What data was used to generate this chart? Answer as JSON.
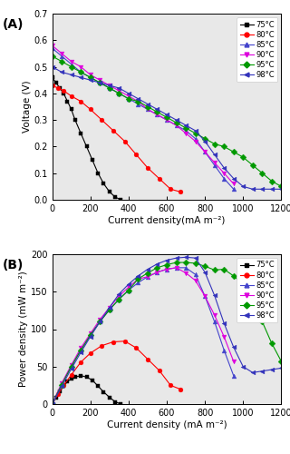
{
  "series_A": {
    "75C": {
      "marker": "s",
      "cd": [
        0,
        20,
        40,
        60,
        80,
        100,
        120,
        150,
        180,
        210,
        240,
        270,
        300,
        330,
        360
      ],
      "v": [
        0.46,
        0.44,
        0.42,
        0.4,
        0.37,
        0.34,
        0.3,
        0.25,
        0.2,
        0.15,
        0.1,
        0.06,
        0.03,
        0.01,
        0.0
      ]
    },
    "80C": {
      "marker": "o",
      "cd": [
        0,
        30,
        60,
        100,
        150,
        200,
        260,
        320,
        380,
        440,
        500,
        560,
        620,
        670
      ],
      "v": [
        0.43,
        0.42,
        0.41,
        0.39,
        0.37,
        0.34,
        0.3,
        0.26,
        0.22,
        0.17,
        0.12,
        0.08,
        0.04,
        0.03
      ]
    },
    "85C": {
      "marker": "^",
      "cd": [
        0,
        50,
        100,
        150,
        200,
        250,
        300,
        350,
        400,
        450,
        500,
        550,
        600,
        650,
        700,
        750,
        800,
        850,
        900,
        950
      ],
      "v": [
        0.57,
        0.54,
        0.51,
        0.48,
        0.46,
        0.44,
        0.42,
        0.4,
        0.38,
        0.36,
        0.34,
        0.32,
        0.3,
        0.28,
        0.26,
        0.23,
        0.18,
        0.13,
        0.08,
        0.04
      ]
    },
    "90C": {
      "marker": "v",
      "cd": [
        0,
        50,
        100,
        150,
        200,
        250,
        300,
        350,
        400,
        450,
        500,
        550,
        600,
        650,
        700,
        750,
        800,
        850,
        900,
        950
      ],
      "v": [
        0.58,
        0.55,
        0.52,
        0.5,
        0.47,
        0.45,
        0.43,
        0.41,
        0.39,
        0.37,
        0.34,
        0.32,
        0.3,
        0.28,
        0.25,
        0.22,
        0.18,
        0.14,
        0.1,
        0.06
      ]
    },
    "95C": {
      "marker": "D",
      "cd": [
        0,
        50,
        100,
        150,
        200,
        250,
        300,
        350,
        400,
        450,
        500,
        550,
        600,
        650,
        700,
        750,
        800,
        850,
        900,
        950,
        1000,
        1050,
        1100,
        1150,
        1200
      ],
      "v": [
        0.54,
        0.52,
        0.5,
        0.48,
        0.46,
        0.44,
        0.42,
        0.4,
        0.38,
        0.37,
        0.35,
        0.33,
        0.31,
        0.29,
        0.27,
        0.25,
        0.23,
        0.21,
        0.2,
        0.18,
        0.16,
        0.13,
        0.1,
        0.07,
        0.05
      ]
    },
    "98C": {
      "marker": "<",
      "cd": [
        0,
        50,
        100,
        150,
        200,
        250,
        300,
        350,
        400,
        450,
        500,
        550,
        600,
        650,
        700,
        750,
        800,
        850,
        900,
        950,
        1000,
        1050,
        1100,
        1150,
        1200
      ],
      "v": [
        0.5,
        0.48,
        0.47,
        0.46,
        0.45,
        0.44,
        0.43,
        0.42,
        0.4,
        0.38,
        0.36,
        0.34,
        0.32,
        0.3,
        0.28,
        0.26,
        0.22,
        0.17,
        0.12,
        0.08,
        0.05,
        0.04,
        0.04,
        0.04,
        0.04
      ]
    }
  },
  "series_B": {
    "75C": {
      "marker": "s",
      "cd": [
        0,
        20,
        40,
        60,
        80,
        100,
        120,
        150,
        180,
        210,
        240,
        270,
        300,
        330,
        360
      ],
      "pd": [
        0,
        9,
        17,
        24,
        30,
        34,
        36,
        38,
        36,
        32,
        24,
        16,
        9,
        3,
        0
      ]
    },
    "80C": {
      "marker": "o",
      "cd": [
        0,
        30,
        60,
        100,
        150,
        200,
        260,
        320,
        380,
        440,
        500,
        560,
        620,
        670
      ],
      "pd": [
        0,
        13,
        25,
        39,
        56,
        68,
        78,
        83,
        84,
        75,
        60,
        45,
        25,
        20
      ]
    },
    "85C": {
      "marker": "^",
      "cd": [
        0,
        50,
        100,
        150,
        200,
        250,
        300,
        350,
        400,
        450,
        500,
        550,
        600,
        650,
        700,
        750,
        800,
        850,
        900,
        950
      ],
      "pd": [
        0,
        27,
        51,
        72,
        92,
        110,
        126,
        140,
        152,
        162,
        170,
        176,
        180,
        182,
        182,
        173,
        144,
        110,
        72,
        38
      ]
    },
    "90C": {
      "marker": "v",
      "cd": [
        0,
        50,
        100,
        150,
        200,
        250,
        300,
        350,
        400,
        450,
        500,
        550,
        600,
        650,
        700,
        750,
        800,
        850,
        900,
        950
      ],
      "pd": [
        0,
        28,
        52,
        75,
        94,
        113,
        129,
        144,
        156,
        167,
        170,
        176,
        180,
        182,
        175,
        165,
        144,
        119,
        90,
        57
      ]
    },
    "95C": {
      "marker": "D",
      "cd": [
        0,
        50,
        100,
        150,
        200,
        250,
        300,
        350,
        400,
        450,
        500,
        550,
        600,
        650,
        700,
        750,
        800,
        850,
        900,
        950,
        1000,
        1050,
        1100,
        1150,
        1200
      ],
      "pd": [
        0,
        26,
        50,
        72,
        92,
        110,
        126,
        140,
        152,
        167,
        175,
        182,
        186,
        189,
        189,
        188,
        184,
        179,
        180,
        171,
        160,
        137,
        110,
        81,
        57
      ]
    },
    "98C": {
      "marker": "<",
      "cd": [
        0,
        50,
        100,
        150,
        200,
        250,
        300,
        350,
        400,
        450,
        500,
        550,
        600,
        650,
        700,
        750,
        800,
        850,
        900,
        950,
        1000,
        1050,
        1100,
        1150,
        1200
      ],
      "pd": [
        0,
        24,
        47,
        69,
        90,
        110,
        129,
        147,
        160,
        171,
        180,
        187,
        192,
        195,
        196,
        195,
        176,
        145,
        108,
        76,
        50,
        42,
        44,
        46,
        48
      ]
    }
  },
  "colors": {
    "75C": "#000000",
    "80C": "#ff0000",
    "85C": "#4444cc",
    "90C": "#dd00dd",
    "95C": "#009900",
    "98C": "#3333bb"
  },
  "markers": {
    "75C": "s",
    "80C": "o",
    "85C": "^",
    "90C": "v",
    "95C": "D",
    "98C": "<"
  },
  "legend_labels": [
    "75°C",
    "80°C",
    "85°C",
    "90°C",
    "95°C",
    "98°C"
  ],
  "panel_labels": [
    "(A)",
    "(B)"
  ],
  "xlabel_A": "Current density(mA m⁻²)",
  "ylabel_A": "Voltage (V)",
  "xlabel_B": "Current density (mA m⁻²)",
  "ylabel_B": "Power density (mW m⁻²)",
  "xlim": [
    0,
    1200
  ],
  "ylim_A": [
    0.0,
    0.7
  ],
  "ylim_B": [
    0,
    200
  ],
  "xticks": [
    0,
    200,
    400,
    600,
    800,
    1000,
    1200
  ],
  "yticks_A": [
    0.0,
    0.1,
    0.2,
    0.3,
    0.4,
    0.5,
    0.6,
    0.7
  ],
  "yticks_B": [
    0,
    50,
    100,
    150,
    200
  ],
  "bg_color": "#e8e8e8"
}
